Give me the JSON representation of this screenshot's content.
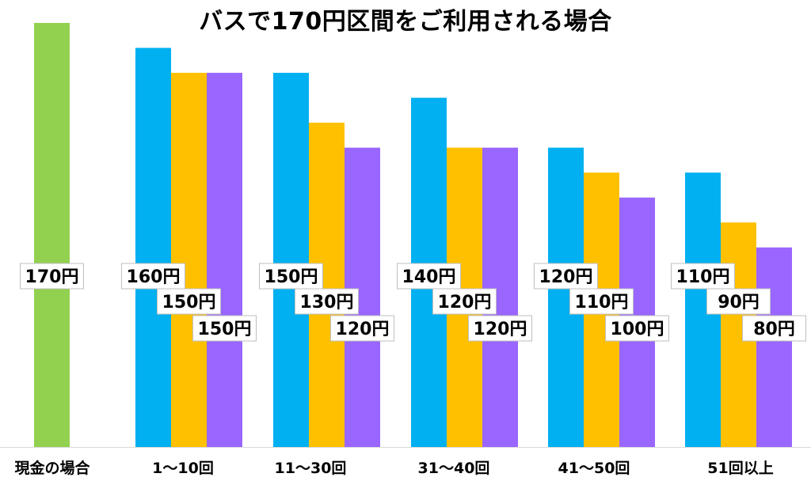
{
  "chart_data": {
    "type": "bar",
    "title": "バスで170円区間をご利用される場合",
    "categories": [
      "現金の場合",
      "1〜10回",
      "11〜30回",
      "31〜40回",
      "41〜50回",
      "51回以上"
    ],
    "ylim": [
      0,
      170
    ],
    "grid": false,
    "legend": "none",
    "series": [
      {
        "color": "#92d050",
        "values": [
          170,
          null,
          null,
          null,
          null,
          null
        ],
        "labels": [
          "170円",
          null,
          null,
          null,
          null,
          null
        ]
      },
      {
        "color": "#00b0f0",
        "values": [
          null,
          160,
          150,
          140,
          120,
          110
        ],
        "labels": [
          null,
          "160円",
          "150円",
          "140円",
          "120円",
          "110円"
        ]
      },
      {
        "color": "#ffc000",
        "values": [
          null,
          150,
          130,
          120,
          110,
          90
        ],
        "labels": [
          null,
          "150円",
          "130円",
          "120円",
          "110円",
          "90円"
        ]
      },
      {
        "color": "#9966ff",
        "values": [
          null,
          150,
          120,
          120,
          100,
          80
        ],
        "labels": [
          null,
          "150円",
          "120円",
          "120円",
          "100円",
          "80円"
        ]
      }
    ]
  }
}
